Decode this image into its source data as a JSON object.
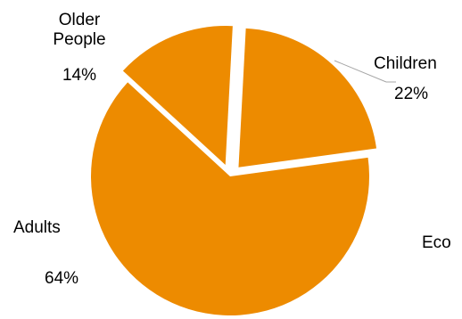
{
  "chart_data": {
    "type": "pie",
    "slices": [
      {
        "label": "Children",
        "value": 22
      },
      {
        "label": "Adults",
        "value": 64
      },
      {
        "label": "Older People",
        "label_lines": [
          "Older",
          "People"
        ],
        "value": 14
      }
    ],
    "value_suffix": "%",
    "slice_color": "#ED8B00",
    "stray_text": "Eco",
    "legend": "none"
  }
}
